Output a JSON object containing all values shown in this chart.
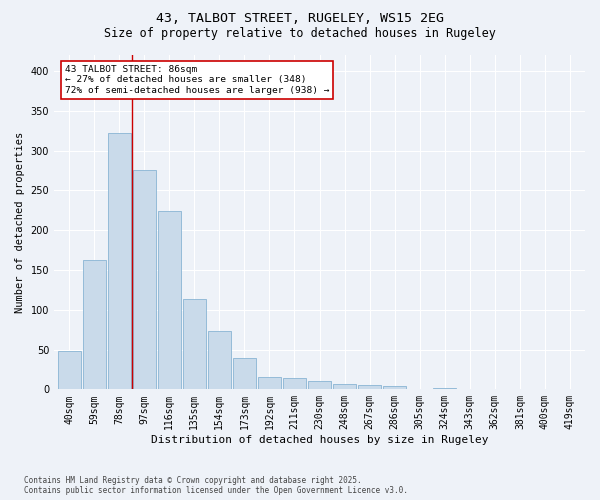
{
  "title1": "43, TALBOT STREET, RUGELEY, WS15 2EG",
  "title2": "Size of property relative to detached houses in Rugeley",
  "xlabel": "Distribution of detached houses by size in Rugeley",
  "ylabel": "Number of detached properties",
  "categories": [
    "40sqm",
    "59sqm",
    "78sqm",
    "97sqm",
    "116sqm",
    "135sqm",
    "154sqm",
    "173sqm",
    "192sqm",
    "211sqm",
    "230sqm",
    "248sqm",
    "267sqm",
    "286sqm",
    "305sqm",
    "324sqm",
    "343sqm",
    "362sqm",
    "381sqm",
    "400sqm",
    "419sqm"
  ],
  "bar_heights": [
    48,
    163,
    322,
    275,
    224,
    113,
    73,
    39,
    16,
    14,
    10,
    7,
    5,
    4,
    1,
    2,
    0,
    0,
    1,
    0,
    1
  ],
  "bar_color": "#c9daea",
  "bar_edge_color": "#89b4d4",
  "vline_color": "#cc0000",
  "annotation_text": "43 TALBOT STREET: 86sqm\n← 27% of detached houses are smaller (348)\n72% of semi-detached houses are larger (938) →",
  "annotation_box_color": "#ffffff",
  "annotation_box_edge": "#cc0000",
  "footer1": "Contains HM Land Registry data © Crown copyright and database right 2025.",
  "footer2": "Contains public sector information licensed under the Open Government Licence v3.0.",
  "bg_color": "#eef2f8",
  "grid_color": "#ffffff",
  "ylim": [
    0,
    420
  ],
  "yticks": [
    0,
    50,
    100,
    150,
    200,
    250,
    300,
    350,
    400
  ],
  "title1_fontsize": 9.5,
  "title2_fontsize": 8.5,
  "xlabel_fontsize": 8,
  "ylabel_fontsize": 7.5,
  "tick_fontsize": 7,
  "ann_fontsize": 6.8,
  "footer_fontsize": 5.5
}
